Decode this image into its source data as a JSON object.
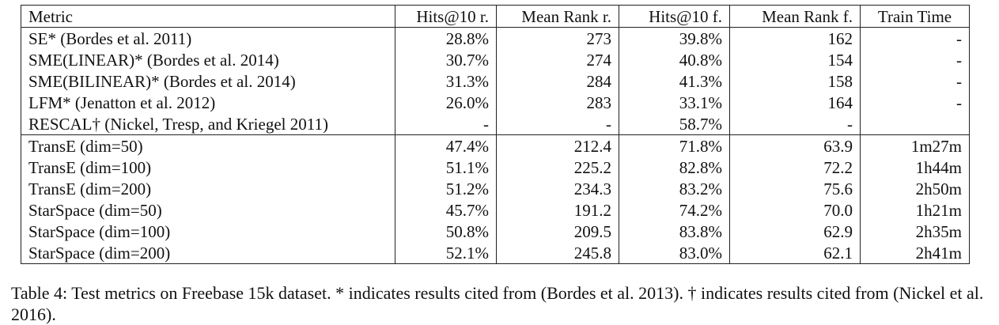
{
  "table": {
    "headers": [
      "Metric",
      "Hits@10 r.",
      "Mean Rank r.",
      "Hits@10 f.",
      "Mean Rank f.",
      "Train Time"
    ],
    "groups": [
      {
        "rows": [
          [
            "SE* (Bordes et al. 2011)",
            "28.8%",
            "273",
            "39.8%",
            "162",
            "-"
          ],
          [
            "SME(LINEAR)* (Bordes et al. 2014)",
            "30.7%",
            "274",
            "40.8%",
            "154",
            "-"
          ],
          [
            "SME(BILINEAR)* (Bordes et al. 2014)",
            "31.3%",
            "284",
            "41.3%",
            "158",
            "-"
          ],
          [
            "LFM* (Jenatton et al. 2012)",
            "26.0%",
            "283",
            "33.1%",
            "164",
            "-"
          ],
          [
            "RESCAL† (Nickel, Tresp, and Kriegel 2011)",
            "-",
            "-",
            "58.7%",
            "-",
            ""
          ]
        ]
      },
      {
        "rows": [
          [
            "TransE (dim=50)",
            "47.4%",
            "212.4",
            "71.8%",
            "63.9",
            "1m27m"
          ],
          [
            "TransE (dim=100)",
            "51.1%",
            "225.2",
            "82.8%",
            "72.2",
            "1h44m"
          ],
          [
            "TransE (dim=200)",
            "51.2%",
            "234.3",
            "83.2%",
            "75.6",
            "2h50m"
          ],
          [
            "StarSpace (dim=50)",
            "45.7%",
            "191.2",
            "74.2%",
            "70.0",
            "1h21m"
          ],
          [
            "StarSpace (dim=100)",
            "50.8%",
            "209.5",
            "83.8%",
            "62.9",
            "2h35m"
          ],
          [
            "StarSpace (dim=200)",
            "52.1%",
            "245.8",
            "83.0%",
            "62.1",
            "2h41m"
          ]
        ]
      }
    ]
  },
  "caption": "Table 4: Test metrics on Freebase 15k dataset. * indicates results cited from (Bordes et al. 2013). † indicates results cited from (Nickel et al. 2016)."
}
